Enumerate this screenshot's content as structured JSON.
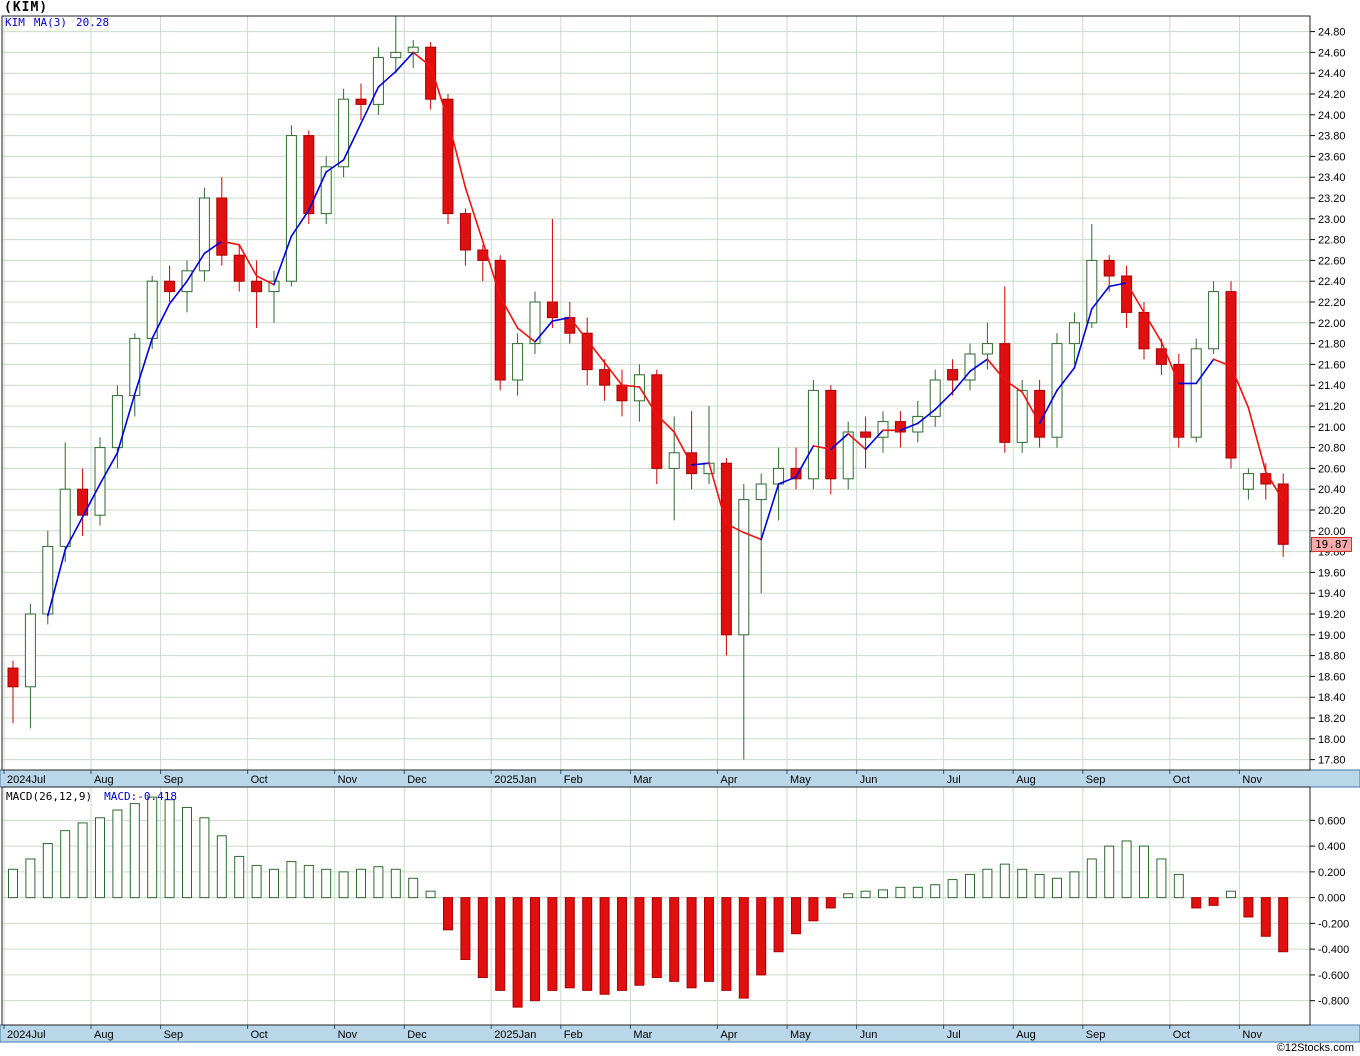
{
  "title": "(KIM)",
  "watermark": "©12Stocks.com",
  "price_chart": {
    "legend": {
      "symbol": "KIM",
      "ma_label": "MA(3)",
      "ma_value": "20.28"
    },
    "last_price_label": "19.87"
  },
  "macd_chart": {
    "label": "MACD(26,12,9)",
    "value_label": "MACD:-0.418"
  },
  "chart_data": {
    "type": "candlestick",
    "title": "(KIM)",
    "symbol": "KIM",
    "interval": "weekly",
    "x_labels": [
      "2024Jul",
      "Aug",
      "Sep",
      "Oct",
      "Nov",
      "Dec",
      "2025Jan",
      "Feb",
      "Mar",
      "Apr",
      "May",
      "Jun",
      "Jul",
      "Aug",
      "Sep",
      "Oct",
      "Nov"
    ],
    "month_start_indices": [
      0,
      5,
      9,
      14,
      19,
      23,
      28,
      32,
      36,
      41,
      45,
      49,
      54,
      58,
      62,
      67,
      71
    ],
    "price_axis": {
      "min": 17.8,
      "max": 24.8,
      "step": 0.2
    },
    "last_close": 19.87,
    "candles": [
      [
        18.68,
        18.75,
        18.15,
        18.5
      ],
      [
        18.5,
        19.3,
        18.1,
        19.2
      ],
      [
        19.2,
        20.0,
        19.1,
        19.85
      ],
      [
        19.85,
        20.85,
        19.7,
        20.4
      ],
      [
        20.4,
        20.6,
        19.95,
        20.15
      ],
      [
        20.15,
        20.9,
        20.05,
        20.8
      ],
      [
        20.8,
        21.4,
        20.6,
        21.3
      ],
      [
        21.3,
        21.9,
        21.1,
        21.85
      ],
      [
        21.85,
        22.45,
        21.75,
        22.4
      ],
      [
        22.4,
        22.55,
        22.2,
        22.3
      ],
      [
        22.3,
        22.6,
        22.1,
        22.5
      ],
      [
        22.5,
        23.3,
        22.4,
        23.2
      ],
      [
        23.2,
        23.4,
        22.55,
        22.65
      ],
      [
        22.65,
        22.75,
        22.3,
        22.4
      ],
      [
        22.4,
        22.6,
        21.95,
        22.3
      ],
      [
        22.3,
        22.5,
        22.0,
        22.4
      ],
      [
        22.4,
        23.9,
        22.35,
        23.8
      ],
      [
        23.8,
        23.85,
        22.95,
        23.05
      ],
      [
        23.05,
        23.6,
        22.95,
        23.5
      ],
      [
        23.5,
        24.25,
        23.4,
        24.15
      ],
      [
        24.15,
        24.3,
        23.95,
        24.1
      ],
      [
        24.1,
        24.65,
        24.0,
        24.55
      ],
      [
        24.55,
        24.95,
        24.4,
        24.6
      ],
      [
        24.6,
        24.72,
        24.45,
        24.65
      ],
      [
        24.65,
        24.7,
        24.05,
        24.15
      ],
      [
        24.15,
        24.2,
        22.95,
        23.05
      ],
      [
        23.05,
        23.1,
        22.55,
        22.7
      ],
      [
        22.7,
        22.75,
        22.4,
        22.6
      ],
      [
        22.6,
        22.65,
        21.35,
        21.45
      ],
      [
        21.45,
        21.9,
        21.3,
        21.8
      ],
      [
        21.8,
        22.3,
        21.7,
        22.2
      ],
      [
        22.2,
        23.0,
        21.95,
        22.05
      ],
      [
        22.05,
        22.2,
        21.8,
        21.9
      ],
      [
        21.9,
        22.05,
        21.4,
        21.55
      ],
      [
        21.55,
        21.65,
        21.25,
        21.4
      ],
      [
        21.4,
        21.55,
        21.1,
        21.25
      ],
      [
        21.25,
        21.6,
        21.05,
        21.5
      ],
      [
        21.5,
        21.55,
        20.45,
        20.6
      ],
      [
        20.6,
        21.1,
        20.1,
        20.75
      ],
      [
        20.75,
        21.15,
        20.4,
        20.55
      ],
      [
        20.55,
        21.2,
        20.45,
        20.65
      ],
      [
        20.65,
        20.7,
        18.8,
        19.0
      ],
      [
        19.0,
        20.45,
        17.8,
        20.3
      ],
      [
        20.3,
        20.55,
        19.4,
        20.45
      ],
      [
        20.45,
        20.8,
        20.1,
        20.6
      ],
      [
        20.6,
        20.8,
        20.4,
        20.5
      ],
      [
        20.5,
        21.45,
        20.4,
        21.35
      ],
      [
        21.35,
        21.4,
        20.35,
        20.5
      ],
      [
        20.5,
        21.05,
        20.4,
        20.95
      ],
      [
        20.95,
        21.1,
        20.6,
        20.9
      ],
      [
        20.9,
        21.15,
        20.75,
        21.05
      ],
      [
        21.05,
        21.15,
        20.8,
        20.95
      ],
      [
        20.95,
        21.25,
        20.85,
        21.1
      ],
      [
        21.1,
        21.55,
        21.0,
        21.45
      ],
      [
        21.55,
        21.65,
        21.3,
        21.45
      ],
      [
        21.45,
        21.8,
        21.35,
        21.7
      ],
      [
        21.7,
        22.0,
        21.55,
        21.8
      ],
      [
        21.8,
        22.35,
        20.75,
        20.85
      ],
      [
        20.85,
        21.45,
        20.75,
        21.35
      ],
      [
        21.35,
        21.45,
        20.8,
        20.9
      ],
      [
        20.9,
        21.9,
        20.8,
        21.8
      ],
      [
        21.8,
        22.1,
        21.6,
        22.0
      ],
      [
        22.0,
        22.95,
        21.95,
        22.6
      ],
      [
        22.6,
        22.65,
        22.3,
        22.45
      ],
      [
        22.45,
        22.55,
        21.95,
        22.1
      ],
      [
        22.1,
        22.2,
        21.65,
        21.75
      ],
      [
        21.75,
        21.85,
        21.5,
        21.6
      ],
      [
        21.6,
        21.7,
        20.8,
        20.9
      ],
      [
        20.9,
        21.85,
        20.85,
        21.75
      ],
      [
        21.75,
        22.4,
        21.7,
        22.3
      ],
      [
        22.3,
        22.4,
        20.6,
        20.7
      ],
      [
        20.4,
        20.6,
        20.3,
        20.55
      ],
      [
        20.55,
        20.65,
        20.3,
        20.45
      ],
      [
        20.45,
        20.55,
        19.75,
        19.87
      ]
    ],
    "overlays": [
      {
        "name": "MA(3)",
        "type": "sma",
        "period": 3,
        "source": "close",
        "last_value": 20.28,
        "style": "blue segments when rising, red when falling"
      }
    ],
    "macd": {
      "label": "MACD(26,12,9)",
      "last_value": -0.418,
      "axis": {
        "min": -0.8,
        "max": 0.6,
        "step": 0.2
      },
      "histogram": [
        0.22,
        0.3,
        0.42,
        0.52,
        0.58,
        0.62,
        0.68,
        0.73,
        0.78,
        0.76,
        0.7,
        0.62,
        0.48,
        0.32,
        0.25,
        0.22,
        0.28,
        0.25,
        0.22,
        0.2,
        0.22,
        0.24,
        0.22,
        0.15,
        0.05,
        -0.25,
        -0.48,
        -0.62,
        -0.72,
        -0.85,
        -0.8,
        -0.72,
        -0.7,
        -0.72,
        -0.75,
        -0.72,
        -0.68,
        -0.62,
        -0.65,
        -0.7,
        -0.65,
        -0.72,
        -0.78,
        -0.6,
        -0.42,
        -0.28,
        -0.18,
        -0.08,
        0.03,
        0.05,
        0.06,
        0.08,
        0.08,
        0.1,
        0.14,
        0.18,
        0.22,
        0.26,
        0.22,
        0.18,
        0.15,
        0.2,
        0.3,
        0.4,
        0.44,
        0.4,
        0.3,
        0.18,
        -0.08,
        -0.06,
        0.05,
        -0.15,
        -0.3,
        -0.42
      ]
    },
    "colors": {
      "up_candle_border": "#2e6b2e",
      "down_candle_fill": "#e01010",
      "ma_rising": "#0000dd",
      "ma_falling": "#ee1111",
      "grid": "#c9dcc9",
      "month_strip": "#b9d7e8",
      "price_tag_bg": "#f5a9a9"
    },
    "legend_position": "top-left",
    "grid": true
  }
}
